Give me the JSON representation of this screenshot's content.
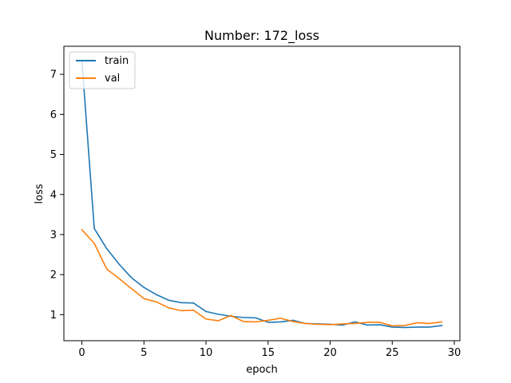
{
  "chart_data": {
    "type": "line",
    "title": "Number: 172_loss",
    "xlabel": "epoch",
    "ylabel": "loss",
    "xlim": [
      -1.45,
      30.45
    ],
    "ylim": [
      0.35,
      7.7
    ],
    "xticks": [
      0,
      5,
      10,
      15,
      20,
      25,
      30
    ],
    "yticks": [
      1,
      2,
      3,
      4,
      5,
      6,
      7
    ],
    "grid": false,
    "legend_placement": "upper-left",
    "x": [
      0,
      1,
      2,
      3,
      4,
      5,
      6,
      7,
      8,
      9,
      10,
      11,
      12,
      13,
      14,
      15,
      16,
      17,
      18,
      19,
      20,
      21,
      22,
      23,
      24,
      25,
      26,
      27,
      28,
      29
    ],
    "series": [
      {
        "name": "train",
        "color": "#1f77b4",
        "values": [
          7.35,
          3.15,
          2.65,
          2.26,
          1.92,
          1.68,
          1.5,
          1.36,
          1.3,
          1.29,
          1.08,
          1.01,
          0.96,
          0.93,
          0.92,
          0.81,
          0.82,
          0.86,
          0.78,
          0.77,
          0.76,
          0.74,
          0.82,
          0.74,
          0.75,
          0.69,
          0.68,
          0.69,
          0.69,
          0.73
        ]
      },
      {
        "name": "val",
        "color": "#ff7f0e",
        "values": [
          3.12,
          2.78,
          2.14,
          1.9,
          1.65,
          1.4,
          1.32,
          1.17,
          1.1,
          1.11,
          0.89,
          0.85,
          0.98,
          0.83,
          0.82,
          0.86,
          0.91,
          0.83,
          0.78,
          0.76,
          0.75,
          0.77,
          0.78,
          0.81,
          0.81,
          0.72,
          0.73,
          0.8,
          0.78,
          0.82
        ]
      }
    ]
  }
}
